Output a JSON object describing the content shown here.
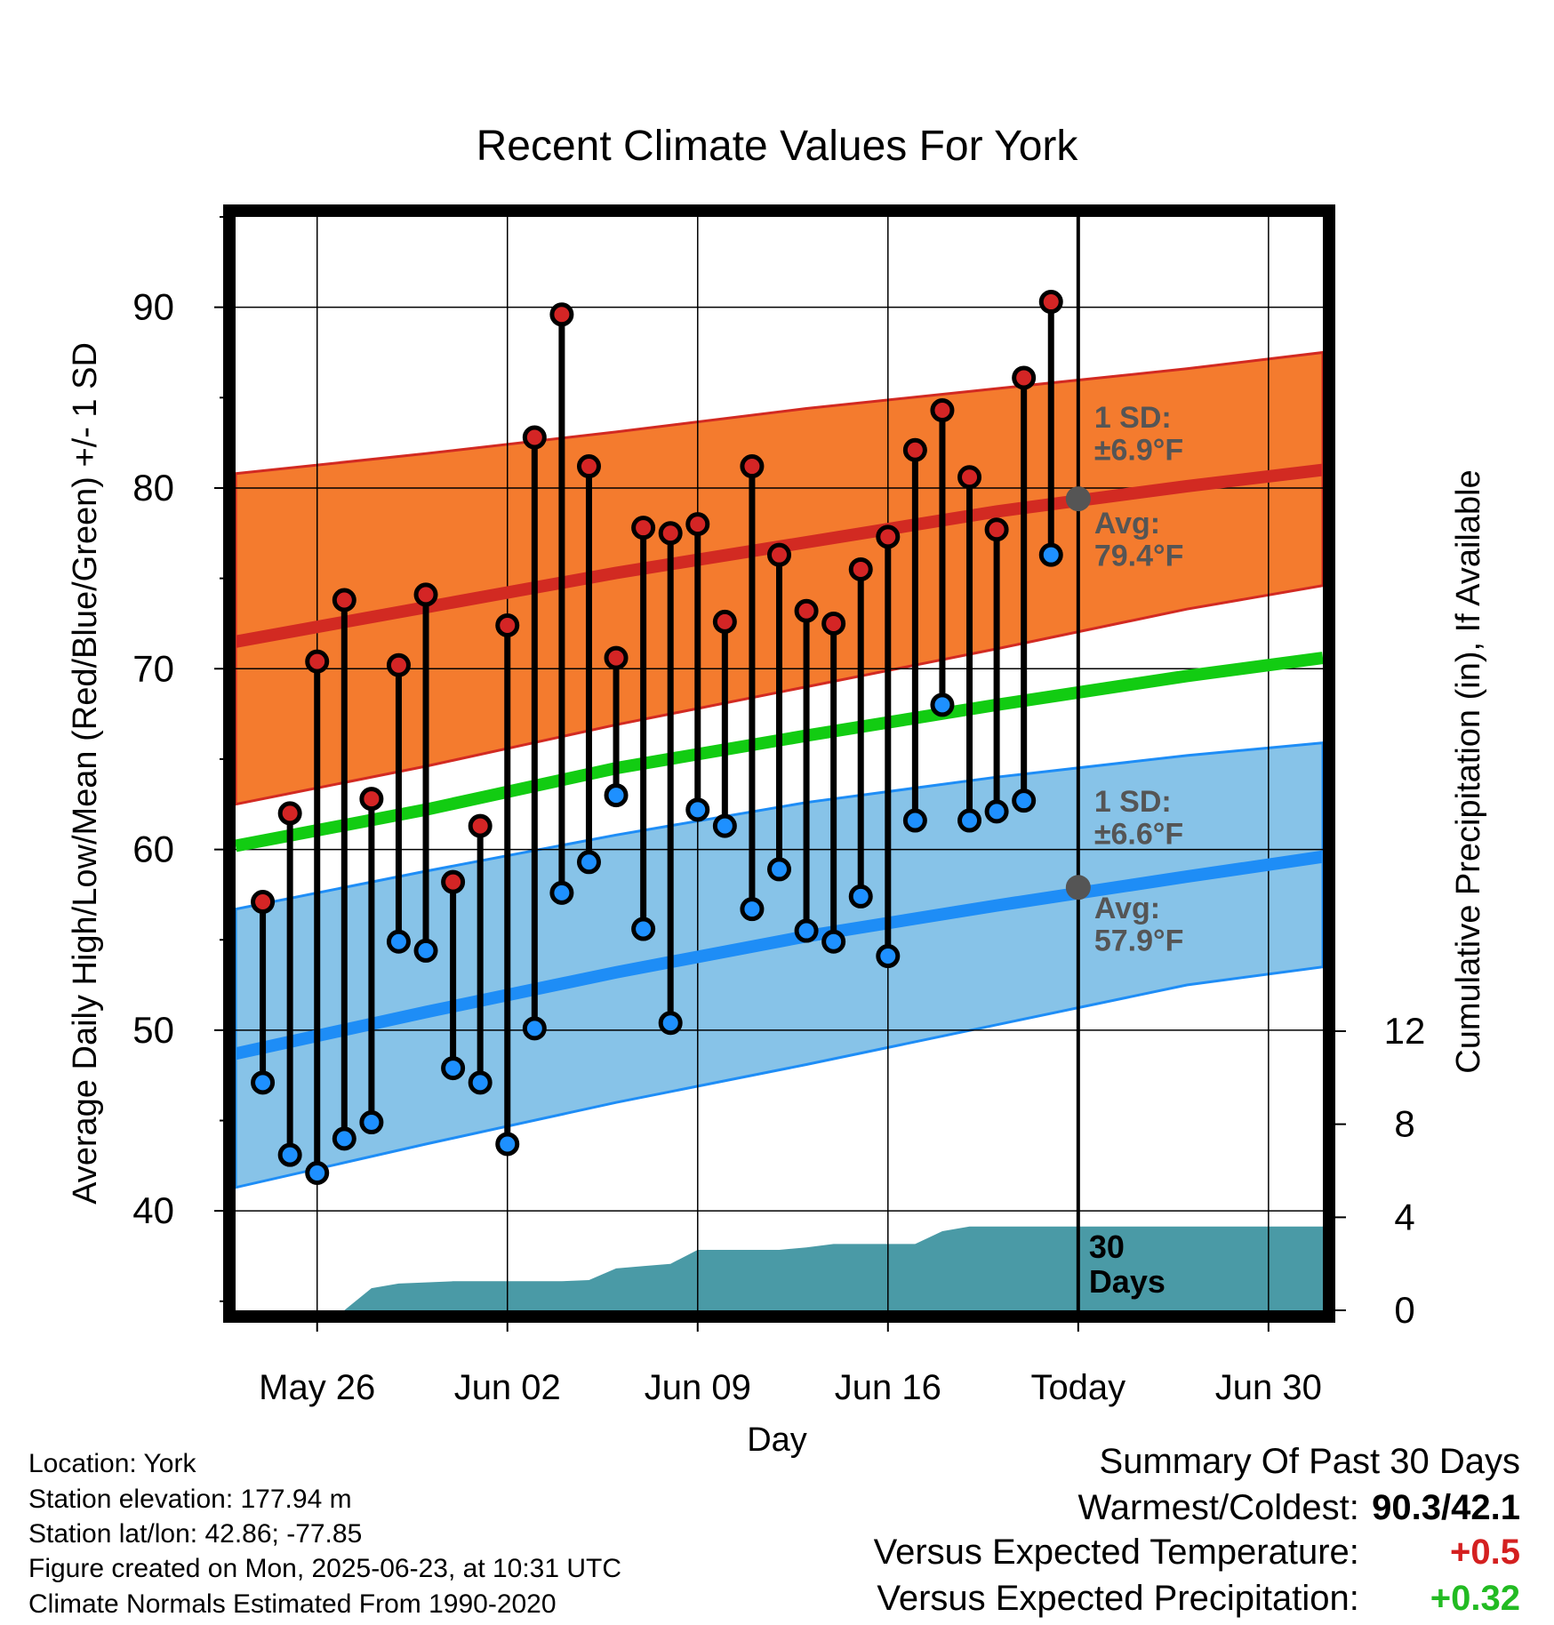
{
  "title": "Recent Climate Values For York",
  "info": {
    "location": "Location: York",
    "elevation": "Station elevation: 177.94 m",
    "latlon": "Station lat/lon: 42.86; -77.85",
    "created": "Figure created on Mon, 2025-06-23, at 10:31 UTC",
    "normals": "Climate Normals Estimated From 1990-2020"
  },
  "summary": {
    "heading": "Summary Of Past 30 Days",
    "warm_cold_label": "Warmest/Coldest:",
    "warm_cold_value": "90.3/42.1",
    "temp_label": "Versus Expected Temperature:",
    "temp_value": "+0.5",
    "precip_label": "Versus Expected Precipitation:",
    "precip_value": "+0.32",
    "temp_color": "#d42020",
    "precip_color": "#22bb22"
  },
  "chart_data": {
    "type": "line",
    "title": "Recent Climate Values For York",
    "xlabel": "Day",
    "ylabel_left": "Average Daily High/Low/Mean (Red/Blue/Green) +/- 1 SD",
    "ylabel_right": "Cumulative Precipitation (in), If Available",
    "x_range": [
      "2025-05-23",
      "2025-07-02"
    ],
    "ylim_left": [
      34.5,
      95
    ],
    "ylim_right": [
      0,
      47
    ],
    "x_ticks": [
      {
        "date": "2025-05-26",
        "label": "May 26"
      },
      {
        "date": "2025-06-02",
        "label": "Jun 02"
      },
      {
        "date": "2025-06-09",
        "label": "Jun 09"
      },
      {
        "date": "2025-06-16",
        "label": "Jun 16"
      },
      {
        "date": "2025-06-23",
        "label": "Today"
      },
      {
        "date": "2025-06-30",
        "label": "Jun 30"
      }
    ],
    "y_ticks_left": [
      40,
      50,
      60,
      70,
      80,
      90
    ],
    "y_ticks_right": [
      0,
      4,
      8,
      12
    ],
    "grid": true,
    "today": "2025-06-23",
    "days_label": "30\nDays",
    "normals": {
      "x": [
        "2025-05-23",
        "2025-05-30",
        "2025-06-06",
        "2025-06-13",
        "2025-06-20",
        "2025-06-27",
        "2025-07-02"
      ],
      "high_mean": [
        71.5,
        73.4,
        75.3,
        77.0,
        78.7,
        80.1,
        81.0
      ],
      "high_upper": [
        80.8,
        81.9,
        83.1,
        84.4,
        85.5,
        86.6,
        87.5
      ],
      "high_lower": [
        62.5,
        64.6,
        66.9,
        69.0,
        71.1,
        73.3,
        74.6
      ],
      "mean": [
        60.2,
        62.2,
        64.5,
        66.3,
        68.0,
        69.6,
        70.6
      ],
      "low_mean": [
        48.7,
        51.0,
        53.2,
        55.2,
        56.9,
        58.5,
        59.6
      ],
      "low_upper": [
        56.7,
        58.8,
        60.8,
        62.6,
        64.0,
        65.2,
        65.9
      ],
      "low_lower": [
        41.3,
        43.7,
        46.0,
        48.1,
        50.3,
        52.5,
        53.5
      ]
    },
    "high_sd_label": "1 SD:\n±6.9°F",
    "high_avg_label": "Avg:\n79.4°F",
    "low_sd_label": "1 SD:\n±6.6°F",
    "low_avg_label": "Avg:\n57.9°F",
    "today_high_avg": 79.4,
    "today_low_avg": 57.9,
    "daily": {
      "dates": [
        "2025-05-24",
        "2025-05-25",
        "2025-05-26",
        "2025-05-27",
        "2025-05-28",
        "2025-05-29",
        "2025-05-30",
        "2025-05-31",
        "2025-06-01",
        "2025-06-02",
        "2025-06-03",
        "2025-06-04",
        "2025-06-05",
        "2025-06-06",
        "2025-06-07",
        "2025-06-08",
        "2025-06-09",
        "2025-06-10",
        "2025-06-11",
        "2025-06-12",
        "2025-06-13",
        "2025-06-14",
        "2025-06-15",
        "2025-06-16",
        "2025-06-17",
        "2025-06-18",
        "2025-06-19",
        "2025-06-20",
        "2025-06-21",
        "2025-06-22"
      ],
      "high": [
        57.1,
        62.0,
        70.4,
        73.8,
        62.8,
        70.2,
        74.1,
        58.2,
        61.3,
        72.4,
        82.8,
        89.6,
        81.2,
        70.6,
        77.8,
        77.5,
        78.0,
        72.6,
        81.2,
        76.3,
        73.2,
        72.5,
        75.5,
        77.3,
        82.1,
        84.3,
        80.6,
        77.7,
        86.1,
        90.3
      ],
      "low": [
        47.1,
        43.1,
        42.1,
        44.0,
        44.9,
        54.9,
        54.4,
        47.9,
        47.1,
        43.7,
        50.1,
        57.6,
        59.3,
        63.0,
        55.6,
        50.4,
        62.2,
        61.3,
        56.7,
        58.9,
        55.5,
        54.9,
        57.4,
        54.1,
        61.6,
        68.0,
        61.6,
        62.1,
        62.7,
        76.3
      ]
    },
    "precip": {
      "x": [
        "2025-05-24",
        "2025-05-25",
        "2025-05-26",
        "2025-05-27",
        "2025-05-28",
        "2025-05-29",
        "2025-05-30",
        "2025-05-31",
        "2025-06-01",
        "2025-06-02",
        "2025-06-03",
        "2025-06-04",
        "2025-06-05",
        "2025-06-06",
        "2025-06-07",
        "2025-06-08",
        "2025-06-09",
        "2025-06-10",
        "2025-06-11",
        "2025-06-12",
        "2025-06-13",
        "2025-06-14",
        "2025-06-15",
        "2025-06-16",
        "2025-06-17",
        "2025-06-18",
        "2025-06-19",
        "2025-06-20",
        "2025-06-21",
        "2025-06-22",
        "2025-06-23",
        "2025-07-02"
      ],
      "cumulative": [
        0,
        0,
        0,
        0,
        0.95,
        1.15,
        1.2,
        1.25,
        1.25,
        1.25,
        1.25,
        1.25,
        1.3,
        1.8,
        1.9,
        2.0,
        2.6,
        2.6,
        2.6,
        2.6,
        2.7,
        2.85,
        2.85,
        2.85,
        2.85,
        3.4,
        3.6,
        3.6,
        3.6,
        3.6,
        3.6,
        3.6
      ]
    },
    "colors": {
      "high_band": "#f47b2e",
      "high_line": "#d22a22",
      "low_band": "#87c3e8",
      "low_line": "#1e8df6",
      "mean_line": "#12cc12",
      "precip": "#4a9aa6",
      "high_marker": "#d42525",
      "low_marker": "#1e90ff",
      "annotation": "#555555"
    }
  }
}
